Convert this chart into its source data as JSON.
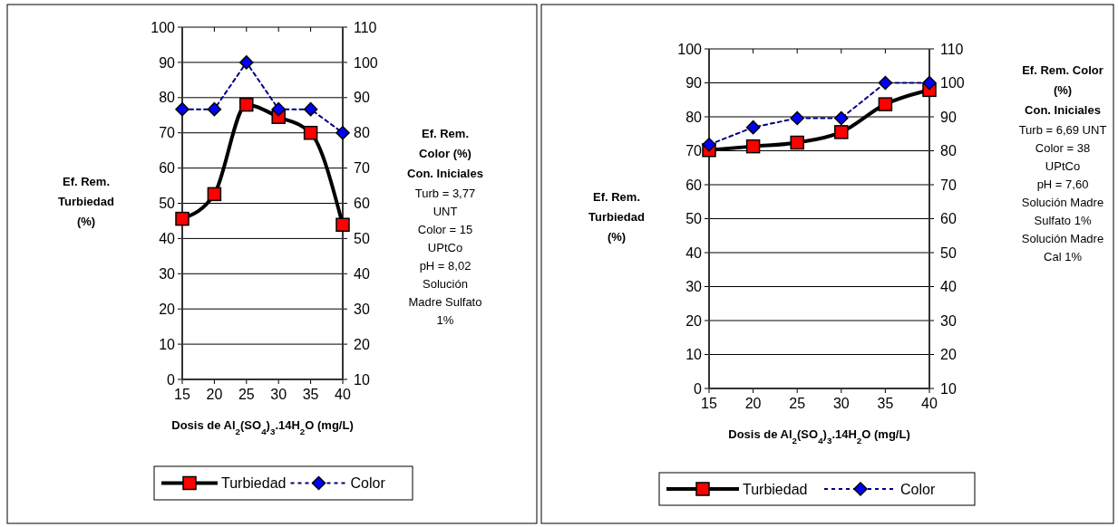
{
  "chart_data": [
    {
      "type": "line",
      "categories": [
        "15",
        "20",
        "25",
        "30",
        "35",
        "40"
      ],
      "xlabel": "Dosis de Al$_{2}$(SO$_{4}$)$_{3}$.14H$_{2}$O (mg/L)",
      "ylabel": "Ef. Rem. Turbiedad (%)",
      "y2label": "Ef. Rem. Color (%)",
      "annotations": [
        "Con. Iniciales",
        "Turb = 3,77 UNT",
        "Color = 15 UPtCo",
        "pH = 8,02",
        "Solución Madre Sulfato  1%"
      ],
      "series": [
        {
          "name": "Turbiedad",
          "color": "#000000",
          "colors": [
            "#ff0000",
            "#ff0000",
            "#ff0000",
            "#ff0000",
            "#ff0000",
            "#ff0000"
          ],
          "marker": "square",
          "line_style": "solid",
          "values": [
            45.6,
            52.6,
            78,
            74.5,
            70,
            43.9
          ]
        },
        {
          "name": "Color",
          "color": "#000080",
          "colors": [
            "#0000ff",
            "#0000ff",
            "#0000ff",
            "#0000ff",
            "#0000ff",
            "#0000ff"
          ],
          "marker": "diamond",
          "line_style": "dashed",
          "axis": "y2",
          "values": [
            86.7,
            86.7,
            100,
            86.7,
            86.7,
            80
          ]
        }
      ],
      "ylim": [
        0,
        100
      ],
      "yticks": [
        0,
        10,
        20,
        30,
        40,
        50,
        60,
        70,
        80,
        90,
        100
      ],
      "y2lim": [
        10,
        110
      ],
      "y2ticks": [
        10,
        20,
        30,
        40,
        50,
        60,
        70,
        80,
        90,
        100,
        110
      ],
      "grid": "y",
      "legend": "bottom"
    },
    {
      "type": "line",
      "categories": [
        "15",
        "20",
        "25",
        "30",
        "35",
        "40"
      ],
      "xlabel": "Dosis de Al$_{2}$(SO$_{4}$)$_{3}$.14H$_{2}$O (mg/L)",
      "ylabel": "Ef. Rem. Turbiedad (%)",
      "y2label": "Ef. Rem. Color (%)",
      "annotations": [
        "Con. Iniciales",
        "Turb = 6,69 UNT",
        "Color = 38 UPtCo",
        "pH = 7,60",
        "Solución Madre Sulfato 1%",
        "Solución Madre Cal 1%"
      ],
      "series": [
        {
          "name": "Turbiedad",
          "color": "#000000",
          "colors": [
            "#ff0000",
            "#ff0000",
            "#ff0000",
            "#ff0000",
            "#ff0000",
            "#ff0000"
          ],
          "marker": "square",
          "line_style": "solid",
          "values": [
            70.2,
            71.3,
            72.4,
            75.5,
            83.7,
            87.9
          ]
        },
        {
          "name": "Color",
          "color": "#000080",
          "colors": [
            "#0000ff",
            "#0000ff",
            "#0000ff",
            "#0000ff",
            "#0000ff",
            "#0000ff"
          ],
          "marker": "diamond",
          "line_style": "dashed",
          "axis": "y2",
          "values": [
            81.8,
            86.9,
            89.6,
            89.6,
            100,
            100
          ]
        }
      ],
      "ylim": [
        0,
        100
      ],
      "yticks": [
        0,
        10,
        20,
        30,
        40,
        50,
        60,
        70,
        80,
        90,
        100
      ],
      "y2lim": [
        10,
        110
      ],
      "y2ticks": [
        10,
        20,
        30,
        40,
        50,
        60,
        70,
        80,
        90,
        100,
        110
      ],
      "grid": "y",
      "legend": "bottom"
    }
  ]
}
